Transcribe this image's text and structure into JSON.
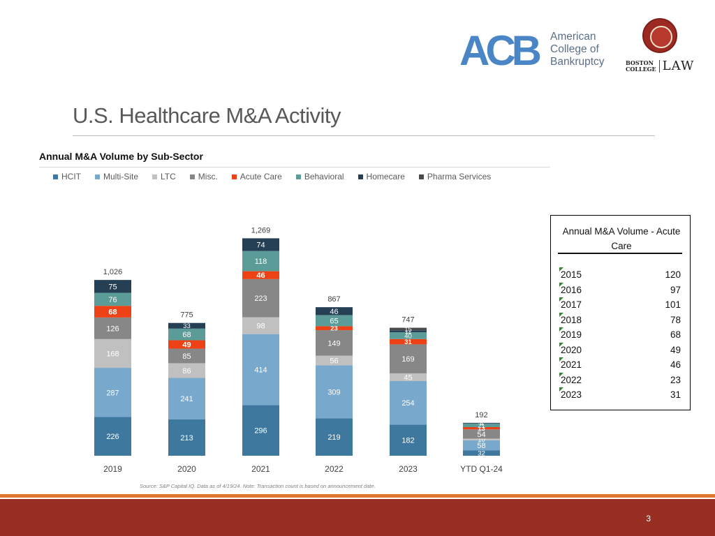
{
  "branding": {
    "acb_letters": "ACB",
    "acb_line1": "American",
    "acb_line2": "College of",
    "acb_line3": "Bankruptcy",
    "bc_line1": "BOSTON",
    "bc_line2": "COLLEGE",
    "bc_law": "LAW"
  },
  "slide": {
    "title": "U.S. Healthcare M&A Activity",
    "source": "Source: S&P Capital IQ. Data as of 4/19/24. Note: Transaction count is based on announcement date.",
    "page_number": "3"
  },
  "chart_data": {
    "type": "bar",
    "stacked": true,
    "title": "Annual M&A Volume by Sub-Sector",
    "xlabel": "",
    "ylabel": "",
    "ylim": [
      0,
      1300
    ],
    "grid": false,
    "legend_position": "top",
    "categories": [
      "2019",
      "2020",
      "2021",
      "2022",
      "2023",
      "YTD Q1-24"
    ],
    "totals": [
      "1,026",
      "775",
      "1,269",
      "867",
      "747",
      "192"
    ],
    "series": [
      {
        "name": "HCIT",
        "color": "#3f789f",
        "label_color": "#ffffff",
        "values": [
          226,
          213,
          296,
          219,
          182,
          32
        ]
      },
      {
        "name": "Multi-Site",
        "color": "#78a8cb",
        "label_color": "#ffffff",
        "values": [
          287,
          241,
          414,
          309,
          254,
          58
        ]
      },
      {
        "name": "LTC",
        "color": "#c0c0c0",
        "label_color": "#ffffff",
        "values": [
          168,
          86,
          98,
          56,
          45,
          10
        ]
      },
      {
        "name": "Misc.",
        "color": "#878787",
        "label_color": "#ffffff",
        "values": [
          126,
          85,
          223,
          149,
          169,
          54
        ]
      },
      {
        "name": "Acute Care",
        "color": "#ee4115",
        "label_color": "#ffffff",
        "bold": true,
        "values": [
          68,
          49,
          46,
          23,
          31,
          13
        ]
      },
      {
        "name": "Behavioral",
        "color": "#5b9c98",
        "label_color": "#ffffff",
        "values": [
          76,
          68,
          118,
          65,
          40,
          21
        ]
      },
      {
        "name": "Homecare",
        "color": "#253f55",
        "label_color": "#ffffff",
        "values": [
          75,
          33,
          74,
          46,
          11,
          4
        ]
      },
      {
        "name": "Pharma Services",
        "color": "#4a4a4a",
        "label_color": "#ffffff",
        "values": [
          0,
          0,
          0,
          0,
          15,
          0
        ]
      }
    ]
  },
  "acute_table": {
    "title": "Annual M&A Volume - Acute Care",
    "rows": [
      {
        "year": "2015",
        "value": "120"
      },
      {
        "year": "2016",
        "value": "97"
      },
      {
        "year": "2017",
        "value": "101"
      },
      {
        "year": "2018",
        "value": "78"
      },
      {
        "year": "2019",
        "value": "68"
      },
      {
        "year": "2020",
        "value": "49"
      },
      {
        "year": "2021",
        "value": "46"
      },
      {
        "year": "2022",
        "value": "23"
      },
      {
        "year": "2023",
        "value": "31"
      }
    ]
  }
}
